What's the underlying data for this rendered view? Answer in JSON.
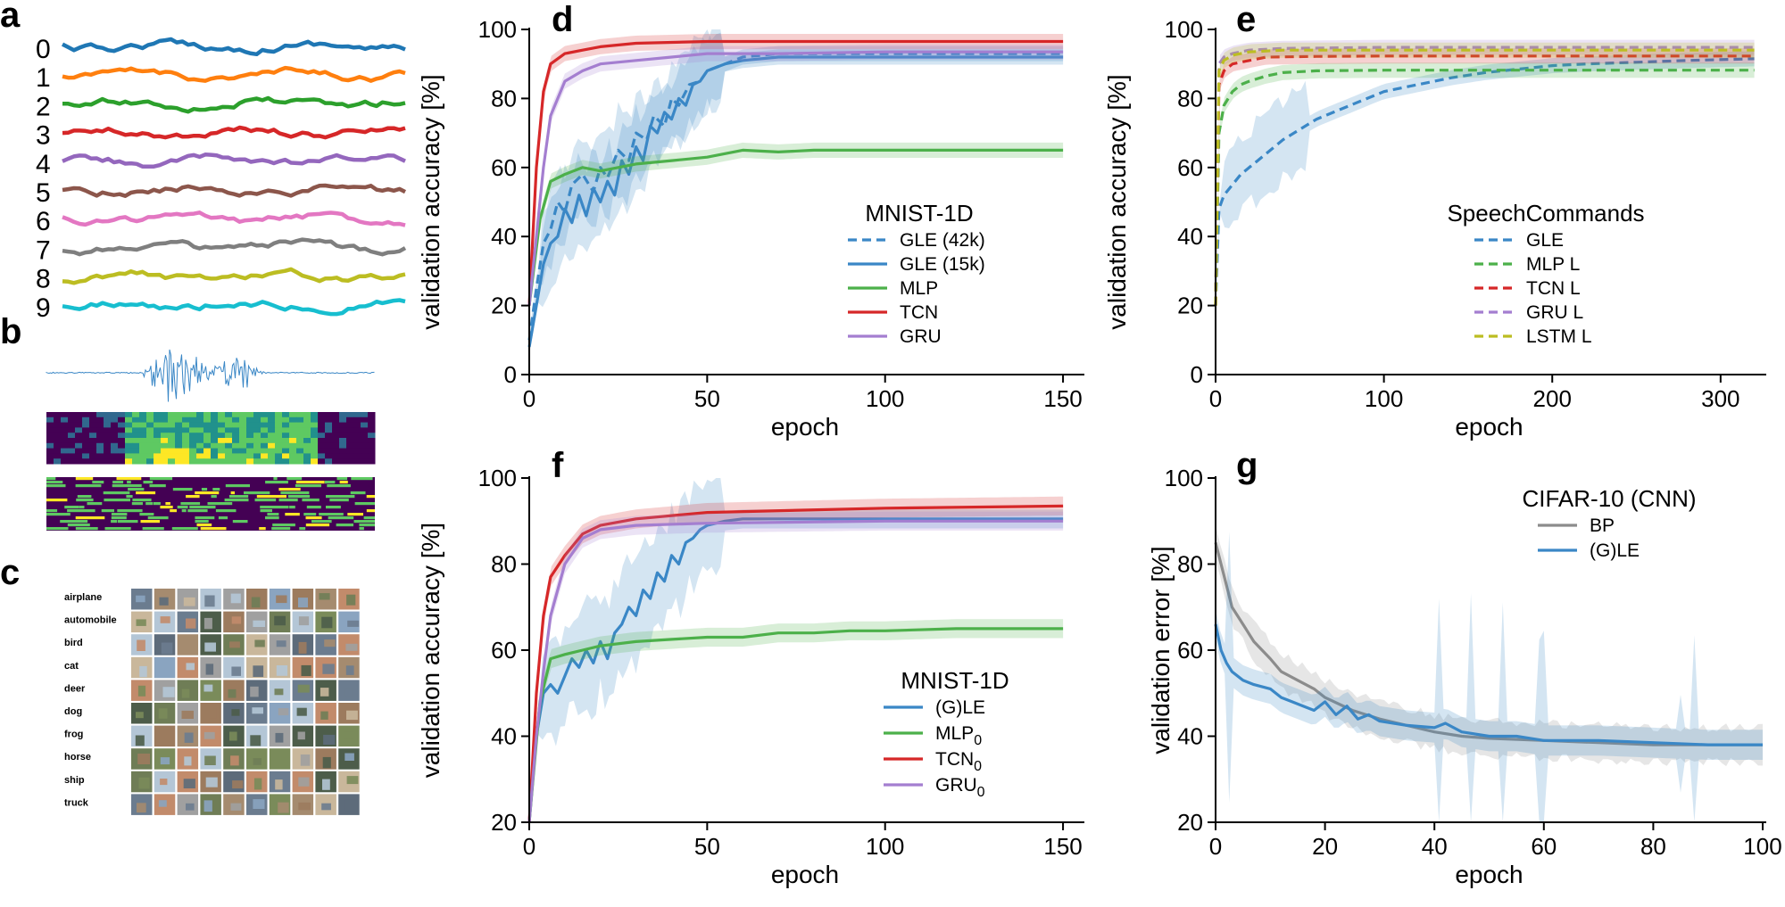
{
  "panel_labels": [
    "a",
    "b",
    "c",
    "d",
    "e",
    "f",
    "g"
  ],
  "colors": {
    "blue": "#3a87c6",
    "orange": "#ff7f0e",
    "green": "#4cb04a",
    "red": "#d62728",
    "purple": "#a47ed0",
    "brown": "#8c564b",
    "pink": "#e377c2",
    "gray": "#7f7f7f",
    "olive": "#bcbd22",
    "cyan": "#17becf",
    "viridis_dark": "#440154",
    "viridis_teal": "#21918c",
    "viridis_green": "#5ec962",
    "viridis_yellow": "#fde725"
  },
  "panel_a": {
    "digits": [
      "0",
      "1",
      "2",
      "3",
      "4",
      "5",
      "6",
      "7",
      "8",
      "9"
    ],
    "trace_colors": [
      "#1f77b4",
      "#ff7f0e",
      "#2ca02c",
      "#d62728",
      "#9467bd",
      "#8c564b",
      "#e377c2",
      "#7f7f7f",
      "#bcbd22",
      "#17becf"
    ]
  },
  "panel_c": {
    "classes": [
      "airplane",
      "automobile",
      "bird",
      "cat",
      "deer",
      "dog",
      "frog",
      "horse",
      "ship",
      "truck"
    ]
  },
  "chart_data": [
    {
      "id": "d",
      "type": "line",
      "xlabel": "epoch",
      "ylabel": "validation accuracy [%]",
      "xlim": [
        0,
        155
      ],
      "ylim": [
        0,
        100
      ],
      "xticks": [
        0,
        50,
        100,
        150
      ],
      "yticks": [
        0,
        20,
        40,
        60,
        80,
        100
      ],
      "legend_title": "MNIST-1D",
      "series": [
        {
          "name": "GLE (42k)",
          "color": "#3a87c6",
          "dash": true,
          "x": [
            0,
            2,
            4,
            6,
            8,
            10,
            12,
            15,
            18,
            20,
            22,
            25,
            28,
            30,
            33,
            35,
            38,
            40,
            42,
            45,
            48,
            50,
            55,
            60,
            70,
            90,
            120,
            150
          ],
          "y": [
            10,
            25,
            38,
            42,
            50,
            47,
            55,
            58,
            53,
            60,
            57,
            65,
            62,
            70,
            68,
            75,
            72,
            80,
            78,
            84,
            85,
            88,
            90,
            92,
            93,
            93,
            93,
            93
          ]
        },
        {
          "name": "GLE (15k)",
          "color": "#3a87c6",
          "dash": false,
          "x": [
            0,
            2,
            4,
            6,
            8,
            10,
            12,
            14,
            16,
            18,
            20,
            22,
            24,
            26,
            28,
            30,
            32,
            34,
            36,
            38,
            40,
            42,
            44,
            46,
            48,
            50,
            55,
            60,
            70,
            90,
            120,
            150
          ],
          "y": [
            8,
            20,
            32,
            38,
            40,
            48,
            44,
            52,
            46,
            54,
            50,
            56,
            52,
            62,
            58,
            66,
            62,
            72,
            70,
            76,
            74,
            80,
            78,
            84,
            85,
            88,
            90,
            91,
            92,
            92,
            92,
            92
          ]
        },
        {
          "name": "MLP",
          "color": "#4cb04a",
          "dash": false,
          "x": [
            0,
            3,
            6,
            10,
            15,
            20,
            25,
            30,
            40,
            50,
            60,
            70,
            80,
            100,
            120,
            150
          ],
          "y": [
            20,
            45,
            56,
            58,
            60,
            59,
            60,
            61,
            62,
            63,
            65,
            64.5,
            65,
            65,
            65,
            65
          ]
        },
        {
          "name": "TCN",
          "color": "#d62728",
          "dash": false,
          "x": [
            0,
            2,
            4,
            6,
            10,
            15,
            20,
            30,
            50,
            100,
            150
          ],
          "y": [
            20,
            60,
            82,
            90,
            93,
            94,
            95,
            96,
            96.5,
            96.5,
            96.5
          ]
        },
        {
          "name": "GRU",
          "color": "#a47ed0",
          "dash": false,
          "x": [
            0,
            2,
            4,
            6,
            10,
            15,
            20,
            30,
            40,
            50,
            70,
            100,
            150
          ],
          "y": [
            20,
            40,
            60,
            75,
            85,
            88,
            90,
            91,
            92,
            93,
            93,
            93.5,
            93.5
          ]
        }
      ]
    },
    {
      "id": "e",
      "type": "line",
      "xlabel": "epoch",
      "ylabel": "validation accuracy [%]",
      "xlim": [
        0,
        325
      ],
      "ylim": [
        0,
        100
      ],
      "xticks": [
        0,
        100,
        200,
        300
      ],
      "yticks": [
        0,
        20,
        40,
        60,
        80,
        100
      ],
      "legend_title": "SpeechCommands",
      "series": [
        {
          "name": "GLE",
          "color": "#3a87c6",
          "dash": true,
          "x": [
            0,
            2,
            5,
            10,
            15,
            20,
            25,
            30,
            35,
            40,
            50,
            60,
            70,
            80,
            90,
            100,
            120,
            140,
            160,
            180,
            200,
            220,
            250,
            280,
            320
          ],
          "y": [
            20,
            48,
            52,
            55,
            58,
            60,
            62,
            64,
            66,
            68,
            71,
            74,
            76,
            78,
            80,
            82,
            84,
            86,
            87.5,
            88.5,
            89.5,
            90,
            90.5,
            91,
            91.5
          ]
        },
        {
          "name": "MLP L",
          "color": "#4cb04a",
          "dash": true,
          "x": [
            0,
            2,
            5,
            10,
            15,
            20,
            30,
            40,
            60,
            100,
            200,
            320
          ],
          "y": [
            20,
            70,
            78,
            82,
            84,
            85,
            86.5,
            87.5,
            88,
            88.2,
            88.2,
            88.2
          ]
        },
        {
          "name": "TCN L",
          "color": "#d62728",
          "dash": true,
          "x": [
            0,
            2,
            5,
            10,
            20,
            30,
            60,
            100,
            320
          ],
          "y": [
            20,
            84,
            88,
            90,
            91,
            92,
            92.2,
            92.3,
            92.3
          ]
        },
        {
          "name": "GRU L",
          "color": "#a47ed0",
          "dash": true,
          "x": [
            0,
            2,
            5,
            10,
            20,
            40,
            100,
            320
          ],
          "y": [
            20,
            90,
            92,
            93,
            94,
            94.5,
            94.8,
            94.8
          ]
        },
        {
          "name": "LSTM L",
          "color": "#bcbd22",
          "dash": true,
          "x": [
            0,
            2,
            5,
            10,
            20,
            40,
            100,
            320
          ],
          "y": [
            20,
            88,
            91,
            92.5,
            93.5,
            94,
            94,
            94
          ]
        }
      ]
    },
    {
      "id": "f",
      "type": "line",
      "xlabel": "epoch",
      "ylabel": "validation accuracy [%]",
      "xlim": [
        0,
        155
      ],
      "ylim": [
        20,
        100
      ],
      "xticks": [
        0,
        50,
        100,
        150
      ],
      "yticks": [
        20,
        40,
        60,
        80,
        100
      ],
      "legend_title": "MNIST-1D",
      "series": [
        {
          "name": "(G)LE",
          "sub": "",
          "color": "#3a87c6",
          "dash": false,
          "x": [
            0,
            2,
            4,
            6,
            8,
            10,
            12,
            14,
            16,
            18,
            20,
            22,
            24,
            26,
            28,
            30,
            32,
            34,
            36,
            38,
            40,
            42,
            44,
            46,
            48,
            50,
            55,
            60,
            80,
            100,
            120,
            150
          ],
          "y": [
            20,
            40,
            50,
            52,
            50,
            54,
            58,
            56,
            60,
            57,
            62,
            58,
            64,
            66,
            70,
            68,
            74,
            72,
            78,
            76,
            82,
            80,
            85,
            86,
            88,
            89,
            90,
            90.5,
            90.5,
            90.5,
            90.5,
            90.5
          ]
        },
        {
          "name": "MLP",
          "sub": "0",
          "color": "#4cb04a",
          "dash": false,
          "x": [
            0,
            3,
            6,
            10,
            15,
            20,
            30,
            40,
            50,
            60,
            70,
            80,
            90,
            100,
            120,
            150
          ],
          "y": [
            20,
            48,
            58,
            59,
            60,
            61,
            62,
            62.5,
            63,
            63,
            64,
            64,
            64.5,
            64.5,
            65,
            65
          ]
        },
        {
          "name": "TCN",
          "sub": "0",
          "color": "#d62728",
          "dash": false,
          "x": [
            0,
            2,
            4,
            6,
            10,
            15,
            20,
            30,
            50,
            100,
            150
          ],
          "y": [
            20,
            50,
            68,
            77,
            82,
            87,
            89,
            90.5,
            92,
            93,
            93.5
          ]
        },
        {
          "name": "GRU",
          "sub": "0",
          "color": "#a47ed0",
          "dash": false,
          "x": [
            0,
            2,
            4,
            6,
            10,
            15,
            20,
            30,
            50,
            100,
            150
          ],
          "y": [
            20,
            40,
            55,
            68,
            80,
            86,
            88,
            89,
            89.5,
            90,
            90
          ]
        }
      ]
    },
    {
      "id": "g",
      "type": "line",
      "xlabel": "epoch",
      "ylabel": "validation error [%]",
      "xlim": [
        0,
        100
      ],
      "ylim": [
        20,
        100
      ],
      "xticks": [
        0,
        20,
        40,
        60,
        80,
        100
      ],
      "yticks": [
        20,
        40,
        60,
        80,
        100
      ],
      "legend_title": "CIFAR-10 (CNN)",
      "series": [
        {
          "name": "BP",
          "color": "#8c8c8c",
          "dash": false,
          "x": [
            0,
            1,
            2,
            3,
            5,
            7,
            10,
            12,
            15,
            18,
            20,
            25,
            30,
            35,
            40,
            45,
            50,
            60,
            70,
            80,
            90,
            100
          ],
          "y": [
            85,
            80,
            75,
            70,
            66,
            62,
            58,
            55,
            53,
            51,
            49,
            46,
            44,
            42.5,
            41,
            40,
            39.5,
            39,
            38.5,
            38,
            38,
            38
          ]
        },
        {
          "name": "(G)LE",
          "color": "#3a87c6",
          "dash": false,
          "x": [
            0,
            1,
            2,
            3,
            5,
            7,
            10,
            12,
            14,
            16,
            18,
            20,
            22,
            24,
            26,
            28,
            30,
            35,
            40,
            42,
            45,
            50,
            55,
            60,
            70,
            80,
            90,
            100
          ],
          "y": [
            66,
            60,
            57,
            55,
            53,
            52,
            51,
            49,
            48,
            47,
            46,
            48,
            45,
            47,
            44,
            45,
            43.5,
            42.5,
            42,
            43,
            41,
            40,
            40,
            39,
            39,
            38.5,
            38,
            38
          ]
        }
      ]
    }
  ]
}
